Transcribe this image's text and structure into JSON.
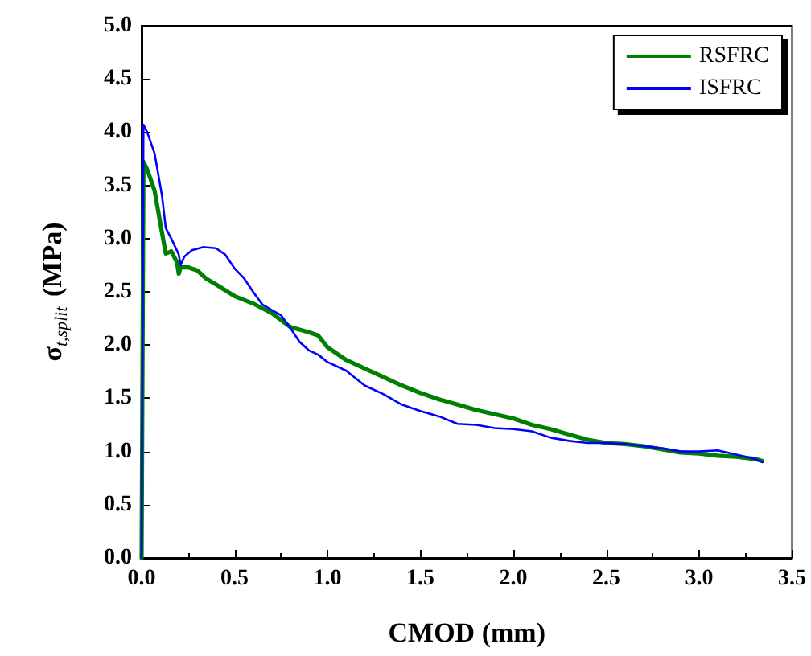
{
  "chart_data": {
    "type": "line",
    "xlabel": "CMOD (mm)",
    "ylabel": "σ$_{t,split}$ (MPa)",
    "xlim": [
      0,
      3.5
    ],
    "xticks": [
      {
        "value": 0,
        "label": "0.0"
      },
      0.5,
      {
        "value": 1,
        "label": "1.0"
      },
      1.5,
      {
        "value": 2,
        "label": "2.0"
      },
      2.5,
      {
        "value": 3,
        "label": "3.0"
      },
      3.5
    ],
    "ylim": [
      0,
      5
    ],
    "yticks": [
      {
        "value": 0,
        "label": "0.0"
      },
      0.5,
      {
        "value": 1,
        "label": "1.0"
      },
      1.5,
      {
        "value": 2,
        "label": "2.0"
      },
      2.5,
      {
        "value": 3,
        "label": "3.0"
      },
      3.5,
      {
        "value": 4,
        "label": "4.0"
      },
      4.5,
      {
        "value": 5,
        "label": "5.0"
      }
    ],
    "grid": false,
    "legend": "top right",
    "marker": "none",
    "line_style": "solid",
    "series": [
      {
        "name": "RSFRC",
        "color": "#008000",
        "x": [
          0,
          0.01,
          0.03,
          0.07,
          0.1,
          0.13,
          0.16,
          0.19,
          0.2,
          0.21,
          0.25,
          0.3,
          0.35,
          0.4,
          0.5,
          0.6,
          0.7,
          0.8,
          0.9,
          0.95,
          1.0,
          1.1,
          1.2,
          1.3,
          1.4,
          1.5,
          1.6,
          1.7,
          1.8,
          1.9,
          2.0,
          2.1,
          2.2,
          2.3,
          2.4,
          2.5,
          2.6,
          2.7,
          2.8,
          2.9,
          3.0,
          3.1,
          3.2,
          3.3,
          3.34
        ],
        "values": [
          0,
          3.72,
          3.65,
          3.45,
          3.15,
          2.86,
          2.88,
          2.78,
          2.67,
          2.73,
          2.73,
          2.7,
          2.62,
          2.57,
          2.46,
          2.39,
          2.3,
          2.17,
          2.12,
          2.09,
          1.98,
          1.86,
          1.78,
          1.7,
          1.62,
          1.55,
          1.49,
          1.44,
          1.39,
          1.35,
          1.31,
          1.25,
          1.21,
          1.16,
          1.11,
          1.08,
          1.07,
          1.05,
          1.02,
          0.99,
          0.98,
          0.96,
          0.95,
          0.93,
          0.91
        ]
      },
      {
        "name": "ISFRC",
        "color": "#0000ff",
        "x": [
          0,
          0.01,
          0.03,
          0.07,
          0.11,
          0.13,
          0.16,
          0.2,
          0.21,
          0.23,
          0.27,
          0.33,
          0.4,
          0.45,
          0.5,
          0.55,
          0.6,
          0.65,
          0.7,
          0.75,
          0.8,
          0.85,
          0.9,
          0.95,
          1.0,
          1.1,
          1.2,
          1.3,
          1.4,
          1.5,
          1.6,
          1.7,
          1.8,
          1.9,
          2.0,
          2.1,
          2.2,
          2.3,
          2.4,
          2.5,
          2.6,
          2.7,
          2.8,
          2.9,
          3.0,
          3.1,
          3.2,
          3.3,
          3.34
        ],
        "values": [
          0,
          4.07,
          4.0,
          3.8,
          3.4,
          3.1,
          3.0,
          2.85,
          2.75,
          2.83,
          2.89,
          2.92,
          2.91,
          2.85,
          2.72,
          2.63,
          2.5,
          2.38,
          2.33,
          2.28,
          2.16,
          2.03,
          1.95,
          1.91,
          1.84,
          1.76,
          1.62,
          1.54,
          1.44,
          1.38,
          1.33,
          1.26,
          1.25,
          1.22,
          1.21,
          1.19,
          1.13,
          1.1,
          1.08,
          1.08,
          1.07,
          1.05,
          1.03,
          1.0,
          1.0,
          1.01,
          0.97,
          0.93,
          0.9
        ]
      }
    ]
  }
}
